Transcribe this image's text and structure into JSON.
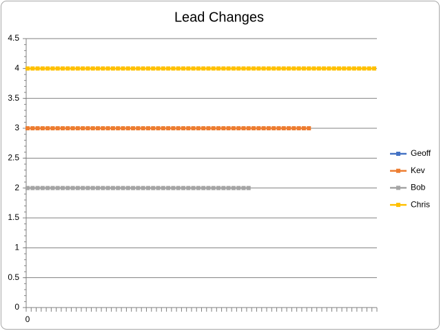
{
  "chart_data": {
    "type": "line",
    "title": "Lead Changes",
    "categories": [
      "0",
      null,
      null,
      null,
      null,
      null,
      null,
      null,
      null,
      null,
      null,
      null,
      null,
      null,
      null,
      null,
      null,
      null,
      null,
      null,
      null,
      null,
      null,
      null,
      null,
      null,
      null,
      null,
      null,
      null,
      null,
      null,
      null,
      null,
      null,
      null,
      null,
      null,
      null,
      null,
      null,
      null,
      null,
      null,
      null,
      null,
      null,
      null,
      null,
      null,
      null,
      null,
      null,
      null,
      null,
      null,
      null,
      null,
      null,
      null,
      null,
      null,
      null,
      null,
      null,
      null,
      null,
      null,
      null,
      null
    ],
    "series": [
      {
        "name": "Geoff",
        "color": "#4472c4",
        "values": [
          null,
          null,
          null,
          null,
          null,
          null,
          null,
          null,
          null,
          null,
          null,
          null,
          null,
          null,
          null,
          null,
          null,
          null,
          null,
          null,
          null,
          null,
          null,
          null,
          null,
          null,
          null,
          null,
          null,
          null,
          null,
          null,
          null,
          null,
          null,
          null,
          null,
          null,
          null,
          null,
          null,
          null,
          null,
          null,
          null,
          null,
          null,
          null,
          null,
          null,
          null,
          null,
          null,
          null,
          null,
          null,
          null,
          null,
          null,
          null,
          null,
          null,
          null,
          null,
          null,
          null,
          null,
          null,
          null,
          null
        ]
      },
      {
        "name": "Kev",
        "color": "#ed7d31",
        "values": [
          3,
          3,
          3,
          3,
          3,
          3,
          3,
          3,
          3,
          3,
          3,
          3,
          3,
          3,
          3,
          3,
          3,
          3,
          3,
          3,
          3,
          3,
          3,
          3,
          3,
          3,
          3,
          3,
          3,
          3,
          3,
          3,
          3,
          3,
          3,
          3,
          3,
          3,
          3,
          3,
          3,
          3,
          3,
          3,
          3,
          3,
          3,
          3,
          3,
          3,
          3,
          3,
          3,
          3,
          3,
          3,
          3,
          null,
          null,
          null,
          null,
          null,
          null,
          null,
          null,
          null,
          null,
          null,
          null,
          null
        ]
      },
      {
        "name": "Bob",
        "color": "#a5a5a5",
        "values": [
          2,
          2,
          2,
          2,
          2,
          2,
          2,
          2,
          2,
          2,
          2,
          2,
          2,
          2,
          2,
          2,
          2,
          2,
          2,
          2,
          2,
          2,
          2,
          2,
          2,
          2,
          2,
          2,
          2,
          2,
          2,
          2,
          2,
          2,
          2,
          2,
          2,
          2,
          2,
          2,
          2,
          2,
          2,
          2,
          2,
          null,
          null,
          null,
          null,
          null,
          null,
          null,
          null,
          null,
          null,
          null,
          null,
          null,
          null,
          null,
          null,
          null,
          null,
          null,
          null,
          null,
          null,
          null,
          null,
          null
        ]
      },
      {
        "name": "Chris",
        "color": "#ffc000",
        "values": [
          4,
          4,
          4,
          4,
          4,
          4,
          4,
          4,
          4,
          4,
          4,
          4,
          4,
          4,
          4,
          4,
          4,
          4,
          4,
          4,
          4,
          4,
          4,
          4,
          4,
          4,
          4,
          4,
          4,
          4,
          4,
          4,
          4,
          4,
          4,
          4,
          4,
          4,
          4,
          4,
          4,
          4,
          4,
          4,
          4,
          4,
          4,
          4,
          4,
          4,
          4,
          4,
          4,
          4,
          4,
          4,
          4,
          4,
          4,
          4,
          4,
          4,
          4,
          4,
          4,
          4,
          4,
          4,
          4,
          4
        ]
      }
    ],
    "ylim": [
      0,
      4.5
    ],
    "yticks": [
      0,
      0.5,
      1,
      1.5,
      2,
      2.5,
      3,
      3.5,
      4,
      4.5
    ],
    "grid": true,
    "legend": "right"
  }
}
